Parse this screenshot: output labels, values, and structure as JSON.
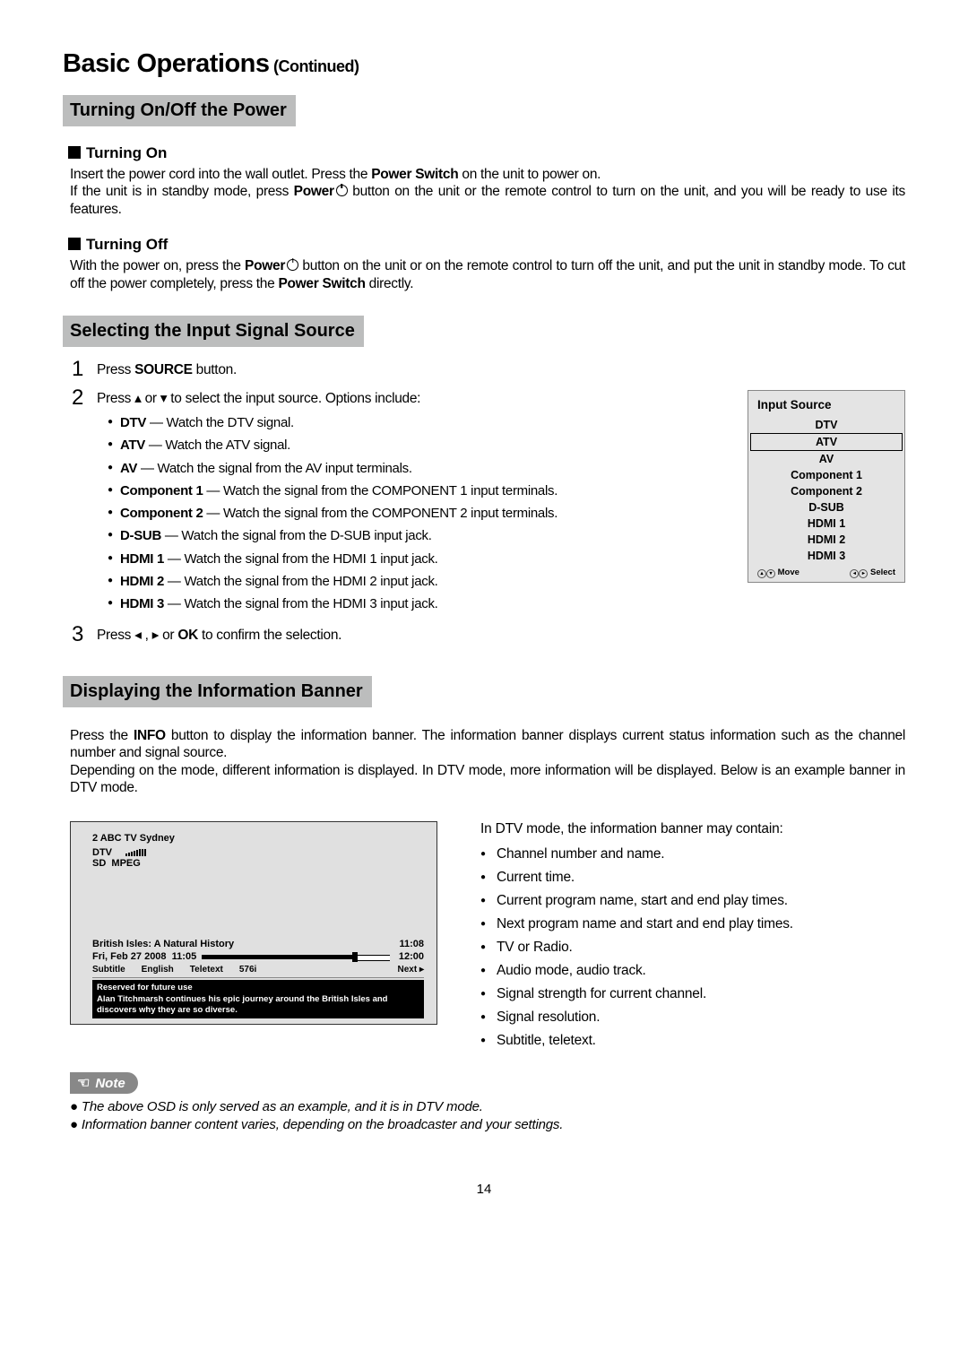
{
  "heading": {
    "title": "Basic Operations",
    "continued": " (Continued)"
  },
  "section1": {
    "title": "Turning On/Off the Power",
    "sub1_title": "Turning On",
    "sub1_p1a": "Insert the power cord into the wall outlet. Press the ",
    "sub1_p1b": "Power Switch",
    "sub1_p1c": " on the unit to power on.",
    "sub1_p2a": "If the unit is in standby mode, press ",
    "sub1_p2b": "Power",
    "sub1_p2c": " button on the unit or the remote control to turn on the unit, and you will be ready to use its features.",
    "sub2_title": "Turning Off",
    "sub2_p1a": "With the power on, press the ",
    "sub2_p1b": "Power",
    "sub2_p1c": " button on the unit or on the remote control to turn off the unit, and put the unit in standby mode. To cut off the power completely, press the ",
    "sub2_p1d": "Power Switch",
    "sub2_p1e": " directly."
  },
  "section2": {
    "title": "Selecting the Input Signal Source",
    "step1": {
      "num": "1",
      "a": "Press ",
      "b": "SOURCE",
      "c": " button."
    },
    "step2": {
      "num": "2",
      "intro": "Press  ▴ or  ▾ to select the input source. Options include:",
      "items": [
        {
          "bold": "DTV",
          "text": " — Watch the DTV signal."
        },
        {
          "bold": "ATV",
          "text": " — Watch the ATV signal."
        },
        {
          "bold": "AV",
          "text": " — Watch the signal from the AV input terminals."
        },
        {
          "bold": "Component 1",
          "text": " — Watch the signal from the COMPONENT 1 input terminals."
        },
        {
          "bold": "Component 2",
          "text": " — Watch the signal from the COMPONENT 2 input terminals."
        },
        {
          "bold": "D-SUB",
          "text": " — Watch the signal from the D-SUB input jack."
        },
        {
          "bold": "HDMI 1",
          "text": " — Watch the signal from the HDMI 1 input jack."
        },
        {
          "bold": "HDMI 2",
          "text": " — Watch the signal from the HDMI 2 input jack."
        },
        {
          "bold": "HDMI 3",
          "text": " — Watch the signal from the HDMI 3 input jack."
        }
      ]
    },
    "step3": {
      "num": "3",
      "a": "Press   ◂ ,  ▸ or ",
      "b": "OK",
      "c": " to confirm the selection."
    },
    "inputbox": {
      "title": "Input Source",
      "items": [
        "DTV",
        "ATV",
        "AV",
        "Component 1",
        "Component 2",
        "D-SUB",
        "HDMI 1",
        "HDMI 2",
        "HDMI 3"
      ],
      "selected_index": 1,
      "foot_move": "Move",
      "foot_select": "Select"
    }
  },
  "section3": {
    "title": "Displaying the Information Banner",
    "p1a": "Press the ",
    "p1b": "INFO",
    "p1c": " button to display the information banner. The information banner displays current status information such as the channel number and signal source.",
    "p2": "Depending on the mode, different information is displayed. In DTV mode, more information will be displayed. Below is an example banner in DTV mode.",
    "banner": {
      "ch": "2   ABC TV Sydney",
      "mode": "DTV",
      "sd": "SD",
      "mpeg": "MPEG",
      "prog_title": "British Isles: A Natural History",
      "time": "11:08",
      "date": "Fri, Feb 27 2008",
      "start": "11:05",
      "end": "12:00",
      "meta": {
        "subtitle": "Subtitle",
        "english": "English",
        "teletext": "Teletext",
        "res": "576i"
      },
      "next": "Next ▸",
      "reserved": "Reserved for future use",
      "desc": "Alan Titchmarsh continues his epic journey around the British Isles and discovers why they are so diverse."
    },
    "right_intro": "In DTV mode, the information banner may contain:",
    "right_items": [
      "Channel number and name.",
      "Current time.",
      "Current program name, start and end play times.",
      "Next program name and start and end play times.",
      "TV or Radio.",
      "Audio mode, audio track.",
      "Signal strength for current channel.",
      "Signal resolution.",
      "Subtitle, teletext."
    ]
  },
  "note": {
    "label": "Note",
    "items": [
      "The above OSD is only served as an example, and it is in DTV mode.",
      "Information banner content varies, depending on the broadcaster and your settings."
    ]
  },
  "page_num": "14"
}
